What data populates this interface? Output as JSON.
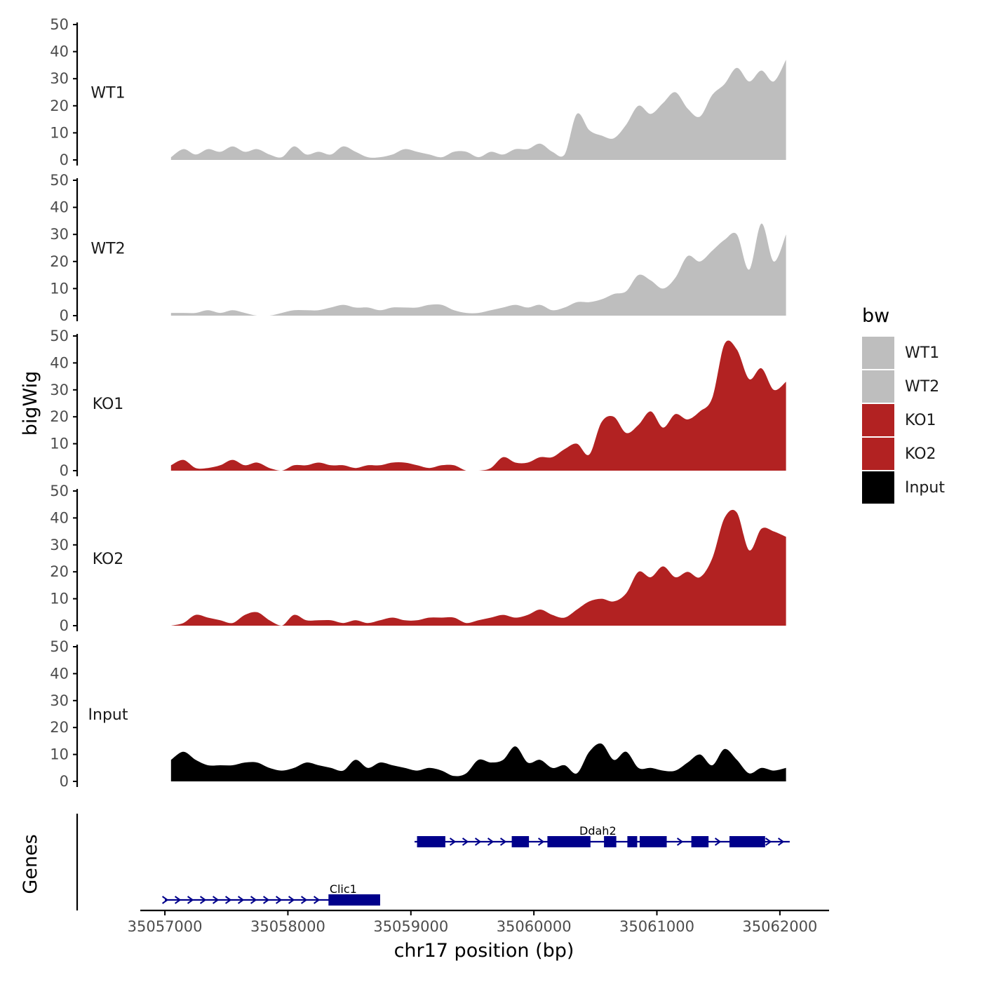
{
  "chart_data": {
    "type": "area",
    "title": "",
    "xlabel": "chr17 position (bp)",
    "ylabel": "bigWig",
    "genes_ylabel": "Genes",
    "legend_title": "bw",
    "xlim": [
      35056800,
      35062400
    ],
    "ylim": [
      0,
      50
    ],
    "y_ticks": [
      0,
      10,
      20,
      30,
      40,
      50
    ],
    "x_ticks": [
      35057000,
      35058000,
      35059000,
      35060000,
      35061000,
      35062000
    ],
    "x_tick_labels": [
      "35057000",
      "35058000",
      "35059000",
      "35060000",
      "35061000",
      "35062000"
    ],
    "colors": {
      "WT1": "#bebebe",
      "WT2": "#bebebe",
      "KO1": "#b22222",
      "KO2": "#b22222",
      "Input": "#000000",
      "gene": "#00008b"
    },
    "series": [
      {
        "name": "WT1",
        "x": [
          35057050,
          35057150,
          35057250,
          35057350,
          35057450,
          35057550,
          35057650,
          35057750,
          35057850,
          35057950,
          35058050,
          35058150,
          35058250,
          35058350,
          35058450,
          35058550,
          35058650,
          35058750,
          35058850,
          35058950,
          35059050,
          35059150,
          35059250,
          35059350,
          35059450,
          35059550,
          35059650,
          35059750,
          35059850,
          35059950,
          35060050,
          35060150,
          35060250,
          35060350,
          35060450,
          35060550,
          35060650,
          35060750,
          35060850,
          35060950,
          35061050,
          35061150,
          35061250,
          35061350,
          35061450,
          35061550,
          35061650,
          35061750,
          35061850,
          35061950,
          35062050
        ],
        "values": [
          1,
          4,
          2,
          4,
          3,
          5,
          3,
          4,
          2,
          1,
          5,
          2,
          3,
          2,
          5,
          3,
          1,
          1,
          2,
          4,
          3,
          2,
          1,
          3,
          3,
          1,
          3,
          2,
          4,
          4,
          6,
          3,
          2,
          17,
          11,
          9,
          8,
          13,
          20,
          17,
          21,
          25,
          19,
          16,
          24,
          28,
          34,
          29,
          33,
          29,
          37
        ]
      },
      {
        "name": "WT2",
        "x": [
          35057050,
          35057150,
          35057250,
          35057350,
          35057450,
          35057550,
          35057650,
          35057750,
          35057850,
          35057950,
          35058050,
          35058150,
          35058250,
          35058350,
          35058450,
          35058550,
          35058650,
          35058750,
          35058850,
          35058950,
          35059050,
          35059150,
          35059250,
          35059350,
          35059450,
          35059550,
          35059650,
          35059750,
          35059850,
          35059950,
          35060050,
          35060150,
          35060250,
          35060350,
          35060450,
          35060550,
          35060650,
          35060750,
          35060850,
          35060950,
          35061050,
          35061150,
          35061250,
          35061350,
          35061450,
          35061550,
          35061650,
          35061750,
          35061850,
          35061950,
          35062050
        ],
        "values": [
          1,
          1,
          1,
          2,
          1,
          2,
          1,
          0,
          0,
          1,
          2,
          2,
          2,
          3,
          4,
          3,
          3,
          2,
          3,
          3,
          3,
          4,
          4,
          2,
          1,
          1,
          2,
          3,
          4,
          3,
          4,
          2,
          3,
          5,
          5,
          6,
          8,
          9,
          15,
          13,
          10,
          14,
          22,
          20,
          24,
          28,
          30,
          17,
          34,
          20,
          30
        ]
      },
      {
        "name": "KO1",
        "x": [
          35057050,
          35057150,
          35057250,
          35057350,
          35057450,
          35057550,
          35057650,
          35057750,
          35057850,
          35057950,
          35058050,
          35058150,
          35058250,
          35058350,
          35058450,
          35058550,
          35058650,
          35058750,
          35058850,
          35058950,
          35059050,
          35059150,
          35059250,
          35059350,
          35059450,
          35059550,
          35059650,
          35059750,
          35059850,
          35059950,
          35060050,
          35060150,
          35060250,
          35060350,
          35060450,
          35060550,
          35060650,
          35060750,
          35060850,
          35060950,
          35061050,
          35061150,
          35061250,
          35061350,
          35061450,
          35061550,
          35061650,
          35061750,
          35061850,
          35061950,
          35062050
        ],
        "values": [
          2,
          4,
          1,
          1,
          2,
          4,
          2,
          3,
          1,
          0,
          2,
          2,
          3,
          2,
          2,
          1,
          2,
          2,
          3,
          3,
          2,
          1,
          2,
          2,
          0,
          0,
          1,
          5,
          3,
          3,
          5,
          5,
          8,
          10,
          6,
          18,
          20,
          14,
          17,
          22,
          16,
          21,
          19,
          22,
          27,
          47,
          45,
          34,
          38,
          30,
          33
        ]
      },
      {
        "name": "KO2",
        "x": [
          35057050,
          35057150,
          35057250,
          35057350,
          35057450,
          35057550,
          35057650,
          35057750,
          35057850,
          35057950,
          35058050,
          35058150,
          35058250,
          35058350,
          35058450,
          35058550,
          35058650,
          35058750,
          35058850,
          35058950,
          35059050,
          35059150,
          35059250,
          35059350,
          35059450,
          35059550,
          35059650,
          35059750,
          35059850,
          35059950,
          35060050,
          35060150,
          35060250,
          35060350,
          35060450,
          35060550,
          35060650,
          35060750,
          35060850,
          35060950,
          35061050,
          35061150,
          35061250,
          35061350,
          35061450,
          35061550,
          35061650,
          35061750,
          35061850,
          35061950,
          35062050
        ],
        "values": [
          0,
          1,
          4,
          3,
          2,
          1,
          4,
          5,
          2,
          0,
          4,
          2,
          2,
          2,
          1,
          2,
          1,
          2,
          3,
          2,
          2,
          3,
          3,
          3,
          1,
          2,
          3,
          4,
          3,
          4,
          6,
          4,
          3,
          6,
          9,
          10,
          9,
          12,
          20,
          18,
          22,
          18,
          20,
          18,
          25,
          40,
          42,
          28,
          36,
          35,
          33
        ]
      },
      {
        "name": "Input",
        "x": [
          35057050,
          35057150,
          35057250,
          35057350,
          35057450,
          35057550,
          35057650,
          35057750,
          35057850,
          35057950,
          35058050,
          35058150,
          35058250,
          35058350,
          35058450,
          35058550,
          35058650,
          35058750,
          35058850,
          35058950,
          35059050,
          35059150,
          35059250,
          35059350,
          35059450,
          35059550,
          35059650,
          35059750,
          35059850,
          35059950,
          35060050,
          35060150,
          35060250,
          35060350,
          35060450,
          35060550,
          35060650,
          35060750,
          35060850,
          35060950,
          35061050,
          35061150,
          35061250,
          35061350,
          35061450,
          35061550,
          35061650,
          35061750,
          35061850,
          35061950,
          35062050
        ],
        "values": [
          8,
          11,
          8,
          6,
          6,
          6,
          7,
          7,
          5,
          4,
          5,
          7,
          6,
          5,
          4,
          8,
          5,
          7,
          6,
          5,
          4,
          5,
          4,
          2,
          3,
          8,
          7,
          8,
          13,
          7,
          8,
          5,
          6,
          3,
          11,
          14,
          8,
          11,
          5,
          5,
          4,
          4,
          7,
          10,
          6,
          12,
          8,
          3,
          5,
          4,
          5
        ]
      }
    ],
    "genes": [
      {
        "name": "Clic1",
        "start": 35057000,
        "end": 35058750,
        "strand": "+",
        "exons": [
          [
            35058330,
            35058750
          ]
        ]
      },
      {
        "name": "Ddah2",
        "start": 35059030,
        "end": 35062080,
        "strand": "+",
        "exons": [
          [
            35059050,
            35059280
          ],
          [
            35059820,
            35059960
          ],
          [
            35060110,
            35060460
          ],
          [
            35060570,
            35060670
          ],
          [
            35060760,
            35060840
          ],
          [
            35060860,
            35061080
          ],
          [
            35061280,
            35061420
          ],
          [
            35061590,
            35061880
          ]
        ]
      }
    ],
    "legend": [
      "WT1",
      "WT2",
      "KO1",
      "KO2",
      "Input"
    ],
    "legend_position": "right"
  }
}
